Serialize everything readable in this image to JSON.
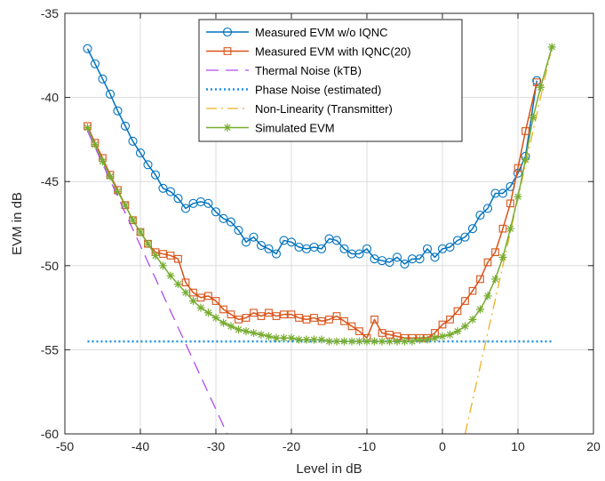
{
  "chart_data": {
    "type": "line",
    "title": "",
    "xlabel": "Level in dB",
    "ylabel": "EVM in dB",
    "xlim": [
      -50,
      20
    ],
    "ylim": [
      -60,
      -35
    ],
    "xticks": [
      -50,
      -40,
      -30,
      -20,
      -10,
      0,
      10,
      20
    ],
    "yticks": [
      -60,
      -55,
      -50,
      -45,
      -40,
      -35
    ],
    "grid": true,
    "legend_position": "top-center",
    "series": [
      {
        "name": "Measured EVM w/o IQNC",
        "color": "#0072BD",
        "style": "solid",
        "marker": "circle",
        "x": [
          -47,
          -46,
          -45,
          -44,
          -43,
          -42,
          -41,
          -40,
          -39,
          -38,
          -37,
          -36,
          -35,
          -34,
          -33,
          -32,
          -31,
          -30,
          -29,
          -28,
          -27,
          -26,
          -25,
          -24,
          -23,
          -22,
          -21,
          -20,
          -19,
          -18,
          -17,
          -16,
          -15,
          -14,
          -13,
          -12,
          -11,
          -10,
          -9,
          -8,
          -7,
          -6,
          -5,
          -4,
          -3,
          -2,
          -1,
          0,
          1,
          2,
          3,
          4,
          5,
          6,
          7,
          8,
          9,
          10,
          11,
          12.5
        ],
        "y": [
          -37.1,
          -38.0,
          -38.9,
          -39.8,
          -40.8,
          -41.7,
          -42.6,
          -43.3,
          -44.0,
          -44.6,
          -45.4,
          -45.6,
          -46.0,
          -46.6,
          -46.3,
          -46.2,
          -46.3,
          -46.8,
          -47.2,
          -47.4,
          -47.9,
          -48.6,
          -48.3,
          -48.8,
          -49.0,
          -49.3,
          -48.5,
          -48.6,
          -48.9,
          -49.0,
          -48.9,
          -49.0,
          -48.4,
          -48.5,
          -49.0,
          -49.3,
          -49.3,
          -49.0,
          -49.6,
          -49.7,
          -49.8,
          -49.5,
          -49.9,
          -49.6,
          -49.6,
          -49.0,
          -49.5,
          -49.0,
          -48.9,
          -48.5,
          -48.3,
          -47.8,
          -47.0,
          -46.6,
          -45.7,
          -45.7,
          -45.3,
          -44.5,
          -43.5,
          -39.0
        ]
      },
      {
        "name": "Measured EVM with IQNC(20)",
        "color": "#D95319",
        "style": "solid",
        "marker": "square",
        "x": [
          -47,
          -46,
          -45,
          -44,
          -43,
          -42,
          -41,
          -40,
          -39,
          -38,
          -37,
          -36,
          -35,
          -34,
          -33,
          -32,
          -31,
          -30,
          -29,
          -28,
          -27,
          -26,
          -25,
          -24,
          -23,
          -22,
          -21,
          -20,
          -19,
          -18,
          -17,
          -16,
          -15,
          -14,
          -13,
          -12,
          -11,
          -10,
          -9,
          -8,
          -7,
          -6,
          -5,
          -4,
          -3,
          -2,
          -1,
          0,
          1,
          2,
          3,
          4,
          5,
          6,
          7,
          8,
          9,
          10,
          11,
          12.5
        ],
        "y": [
          -41.7,
          -42.7,
          -43.6,
          -44.6,
          -45.5,
          -46.4,
          -47.3,
          -48.0,
          -48.7,
          -49.2,
          -49.3,
          -49.4,
          -49.6,
          -51.0,
          -51.6,
          -51.9,
          -51.8,
          -52.1,
          -52.6,
          -52.9,
          -53.2,
          -53.1,
          -52.8,
          -53.0,
          -52.8,
          -53.0,
          -52.9,
          -52.9,
          -53.1,
          -53.2,
          -53.1,
          -53.3,
          -53.2,
          -53.0,
          -53.3,
          -53.6,
          -53.9,
          -54.3,
          -53.2,
          -54.0,
          -54.1,
          -54.2,
          -54.3,
          -54.3,
          -54.3,
          -54.3,
          -54.0,
          -53.5,
          -53.2,
          -52.7,
          -52.1,
          -51.5,
          -50.8,
          -49.8,
          -49.2,
          -47.8,
          -46.3,
          -44.2,
          -42.0,
          -39.1
        ]
      },
      {
        "name": "Thermal Noise (kTB)",
        "color": "#B14BF3",
        "style": "dashed",
        "marker": "none",
        "x": [
          -47,
          -28.5
        ],
        "y": [
          -42.0,
          -60.0
        ]
      },
      {
        "name": "Phase Noise (estimated)",
        "color": "#1E90E6",
        "style": "dotted",
        "marker": "none",
        "x": [
          -47,
          14.5
        ],
        "y": [
          -54.5,
          -54.5
        ]
      },
      {
        "name": "Non-Linearity (Transmitter)",
        "color": "#EDB120",
        "style": "dashdot",
        "marker": "none",
        "x": [
          3.0,
          14.5
        ],
        "y": [
          -60.0,
          -37.0
        ]
      },
      {
        "name": "Simulated EVM",
        "color": "#77AC30",
        "style": "solid",
        "marker": "asterisk",
        "x": [
          -47,
          -46,
          -45,
          -44,
          -43,
          -42,
          -41,
          -40,
          -39,
          -38,
          -37,
          -36,
          -35,
          -34,
          -33,
          -32,
          -31,
          -30,
          -29,
          -28,
          -27,
          -26,
          -25,
          -24,
          -23,
          -22,
          -21,
          -20,
          -19,
          -18,
          -17,
          -16,
          -15,
          -14,
          -13,
          -12,
          -11,
          -10,
          -9,
          -8,
          -7,
          -6,
          -5,
          -4,
          -3,
          -2,
          -1,
          0,
          1,
          2,
          3,
          4,
          5,
          6,
          7,
          8,
          9,
          10,
          11,
          12,
          13,
          14.5
        ],
        "y": [
          -41.8,
          -42.8,
          -43.8,
          -44.7,
          -45.6,
          -46.4,
          -47.3,
          -48.0,
          -48.7,
          -49.4,
          -50.0,
          -50.6,
          -51.1,
          -51.6,
          -52.1,
          -52.5,
          -52.8,
          -53.1,
          -53.4,
          -53.6,
          -53.8,
          -53.9,
          -54.0,
          -54.1,
          -54.2,
          -54.3,
          -54.3,
          -54.3,
          -54.4,
          -54.4,
          -54.4,
          -54.4,
          -54.5,
          -54.5,
          -54.5,
          -54.5,
          -54.5,
          -54.5,
          -54.5,
          -54.5,
          -54.5,
          -54.5,
          -54.5,
          -54.5,
          -54.4,
          -54.4,
          -54.3,
          -54.2,
          -54.1,
          -53.9,
          -53.6,
          -53.2,
          -52.6,
          -51.8,
          -50.8,
          -49.5,
          -47.8,
          -45.9,
          -43.7,
          -41.2,
          -39.4,
          -37.0
        ]
      }
    ]
  }
}
